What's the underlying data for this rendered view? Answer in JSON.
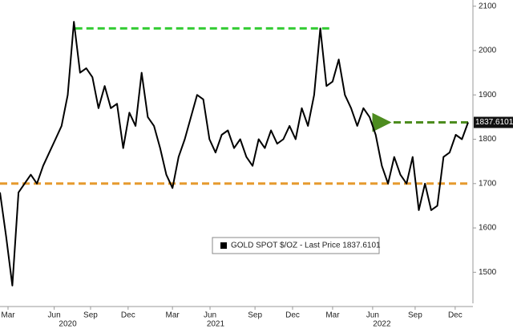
{
  "chart_data": {
    "type": "line",
    "series": [
      {
        "name": "GOLD SPOT $/OZ - Last Price 1837.6101",
        "color": "#000000",
        "values": [
          1680,
          1580,
          1470,
          1680,
          1700,
          1720,
          1700,
          1740,
          1770,
          1800,
          1830,
          1900,
          2065,
          1950,
          1960,
          1940,
          1870,
          1920,
          1870,
          1880,
          1780,
          1860,
          1830,
          1950,
          1850,
          1830,
          1780,
          1720,
          1690,
          1760,
          1800,
          1850,
          1900,
          1890,
          1800,
          1770,
          1810,
          1820,
          1780,
          1800,
          1760,
          1740,
          1800,
          1780,
          1820,
          1790,
          1800,
          1830,
          1800,
          1870,
          1830,
          1900,
          2050,
          1920,
          1930,
          1980,
          1900,
          1870,
          1830,
          1870,
          1850,
          1810,
          1740,
          1700,
          1760,
          1720,
          1700,
          1760,
          1640,
          1700,
          1640,
          1650,
          1760,
          1770,
          1810,
          1800,
          1838
        ]
      }
    ],
    "xlim": [
      0,
      76
    ],
    "xticks": [
      {
        "value": 1.3,
        "label": "Mar"
      },
      {
        "value": 8.8,
        "label": "Jun"
      },
      {
        "value": 14.7,
        "label": "Sep"
      },
      {
        "value": 20.8,
        "label": "Dec"
      },
      {
        "value": 28,
        "label": "Mar"
      },
      {
        "value": 34.1,
        "label": "Jun"
      },
      {
        "value": 41.4,
        "label": "Sep"
      },
      {
        "value": 47.5,
        "label": "Dec"
      },
      {
        "value": 54,
        "label": "Mar"
      },
      {
        "value": 60.5,
        "label": "Jun"
      },
      {
        "value": 67.4,
        "label": "Sep"
      },
      {
        "value": 73.9,
        "label": "Dec"
      }
    ],
    "xgroups": [
      {
        "value": 11,
        "label": "2020"
      },
      {
        "value": 35,
        "label": "2021"
      },
      {
        "value": 62,
        "label": "2022"
      }
    ],
    "ylim": [
      1430,
      2114
    ],
    "yticks": [
      1500,
      1600,
      1700,
      1800,
      1900,
      2000,
      2100
    ],
    "last_price_label": "1837.6101",
    "reference_lines": [
      {
        "value": 2050,
        "from": 12.2,
        "to": 53.6,
        "color": "#33cc33"
      },
      {
        "value": 1700,
        "from": 0,
        "to": 76,
        "color": "#e69a2e"
      },
      {
        "value": 1838,
        "from": 62,
        "to": 76,
        "color": "#4d8c1f"
      }
    ]
  }
}
